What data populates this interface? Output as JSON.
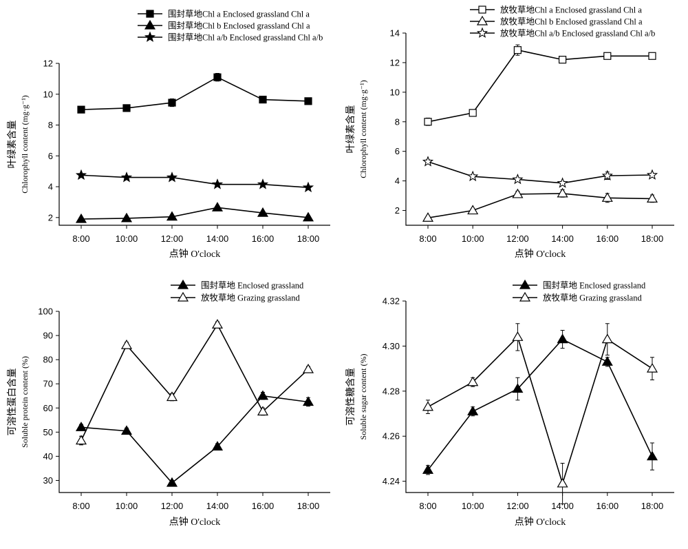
{
  "chart_data": [
    {
      "type": "line",
      "ylabel": "叶绿素含量",
      "ylabel2": "Chlorophyll content (mg·g⁻¹)",
      "xlabel": "点钟 O'clock",
      "categories": [
        "8:00",
        "10:00",
        "12:00",
        "14:00",
        "16:00",
        "18:00"
      ],
      "ylim": [
        1.5,
        12
      ],
      "yticks": [
        2,
        4,
        6,
        8,
        10,
        12
      ],
      "legend_position": "top",
      "series": [
        {
          "name": "围封草地Chl a  Enclosed grassland Chl a",
          "marker": "filled-square",
          "values": [
            9.0,
            9.1,
            9.45,
            11.1,
            9.65,
            9.55
          ],
          "errors": [
            0.12,
            0.12,
            0.25,
            0.25,
            0.12,
            0.12
          ]
        },
        {
          "name": "围封草地Chl b  Enclosed grassland Chl a",
          "marker": "filled-triangle",
          "values": [
            1.9,
            1.95,
            2.05,
            2.65,
            2.3,
            2.0
          ],
          "errors": [
            0.08,
            0.08,
            0.1,
            0.12,
            0.1,
            0.08
          ]
        },
        {
          "name": "围封草地Chl a/b  Enclosed grassland Chl a/b",
          "marker": "filled-star",
          "values": [
            4.75,
            4.6,
            4.6,
            4.15,
            4.15,
            3.95
          ],
          "errors": [
            0.08,
            0.08,
            0.08,
            0.08,
            0.08,
            0.08
          ]
        }
      ]
    },
    {
      "type": "line",
      "ylabel": "叶绿素含量",
      "ylabel2": "Chlorophyll content (mg·g⁻¹)",
      "xlabel": "点钟 O'clock",
      "categories": [
        "8:00",
        "10:00",
        "12:00",
        "14:00",
        "16:00",
        "18:00"
      ],
      "ylim": [
        1,
        14
      ],
      "yticks": [
        2,
        4,
        6,
        8,
        10,
        12,
        14
      ],
      "legend_position": "top",
      "series": [
        {
          "name": "放牧草地Chl a  Enclosed grassland Chl a",
          "marker": "open-square",
          "values": [
            8.0,
            8.6,
            12.85,
            12.2,
            12.45,
            12.45
          ],
          "errors": [
            0.25,
            0.15,
            0.35,
            0.12,
            0.12,
            0.12
          ]
        },
        {
          "name": "放牧草地Chl b  Enclosed grassland Chl a",
          "marker": "open-triangle",
          "values": [
            1.5,
            2.0,
            3.1,
            3.15,
            2.85,
            2.8
          ],
          "errors": [
            0.1,
            0.1,
            0.2,
            0.25,
            0.3,
            0.25
          ]
        },
        {
          "name": "放牧草地Chl a/b  Enclosed grassland Chl a/b",
          "marker": "open-star",
          "values": [
            5.3,
            4.3,
            4.1,
            3.85,
            4.35,
            4.4
          ],
          "errors": [
            0.12,
            0.12,
            0.1,
            0.12,
            0.25,
            0.12
          ]
        }
      ]
    },
    {
      "type": "line",
      "ylabel": "可溶性蛋白含量",
      "ylabel2": "Soluble protein content (%)",
      "xlabel": "点钟 O'clock",
      "categories": [
        "8:00",
        "10:00",
        "12:00",
        "14:00",
        "16:00",
        "18:00"
      ],
      "ylim": [
        25,
        100
      ],
      "yticks": [
        30,
        40,
        50,
        60,
        70,
        80,
        90,
        100
      ],
      "legend_position": "top",
      "series": [
        {
          "name": "围封草地  Enclosed grassland",
          "marker": "filled-triangle",
          "values": [
            52,
            50.5,
            29,
            44,
            65,
            62.5
          ],
          "errors": [
            1.2,
            1.2,
            1.0,
            1.2,
            1.5,
            1.8
          ]
        },
        {
          "name": "放牧草地  Grazing grassland",
          "marker": "open-triangle",
          "values": [
            46.5,
            86,
            64.5,
            94.5,
            58.5,
            76
          ],
          "errors": [
            1.8,
            1.2,
            1.5,
            1.2,
            1.5,
            1.2
          ]
        }
      ]
    },
    {
      "type": "line",
      "ylabel": "可溶性糖含量",
      "ylabel2": "Soluble sugar content (%)",
      "xlabel": "点钟 O'clock",
      "categories": [
        "8:00",
        "10:00",
        "12:00",
        "14:00",
        "16:00",
        "18:00"
      ],
      "ylim": [
        4.235,
        4.32
      ],
      "yticks": [
        4.24,
        4.26,
        4.28,
        4.3,
        4.32
      ],
      "ytick_labels": [
        "4.24",
        "4.26",
        "4.28",
        "4.30",
        "4.32"
      ],
      "legend_position": "top",
      "series": [
        {
          "name": "围封草地  Enclosed grassland",
          "marker": "filled-triangle",
          "values": [
            4.245,
            4.271,
            4.281,
            4.303,
            4.293,
            4.251
          ],
          "errors": [
            0.002,
            0.002,
            0.005,
            0.004,
            0.002,
            0.006
          ]
        },
        {
          "name": "放牧草地  Grazing grassland",
          "marker": "open-triangle",
          "values": [
            4.273,
            4.284,
            4.304,
            4.239,
            4.303,
            4.29
          ],
          "errors": [
            0.003,
            0.002,
            0.006,
            0.009,
            0.007,
            0.005
          ]
        }
      ]
    }
  ]
}
